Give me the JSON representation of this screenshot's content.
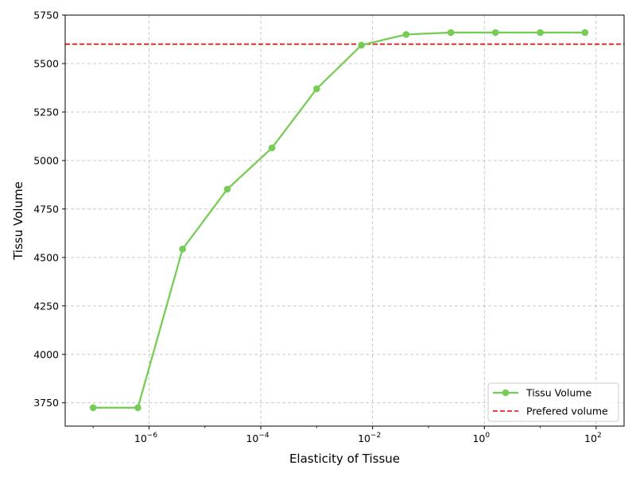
{
  "chart_data": {
    "type": "line",
    "xlabel": "Elasticity of Tissue",
    "ylabel": "Tissu Volume",
    "x_scale": "log",
    "xlim": [
      3.16e-08,
      316
    ],
    "ylim": [
      3630,
      5750
    ],
    "grid": true,
    "legend_position": "bottom-right",
    "y_ticks": [
      3750,
      4000,
      4250,
      4500,
      4750,
      5000,
      5250,
      5500,
      5750
    ],
    "x_ticks": [
      {
        "value": 1e-06,
        "base": "10",
        "exp": "−6"
      },
      {
        "value": 0.0001,
        "base": "10",
        "exp": "−4"
      },
      {
        "value": 0.01,
        "base": "10",
        "exp": "−2"
      },
      {
        "value": 1,
        "base": "10",
        "exp": "0"
      },
      {
        "value": 100,
        "base": "10",
        "exp": "2"
      }
    ],
    "series": [
      {
        "name": "Tissu Volume",
        "color": "#77cc55",
        "style": "solid",
        "marker": "circle",
        "x": [
          1e-07,
          6.31e-07,
          3.98e-06,
          2.51e-05,
          0.000158,
          0.001,
          0.00631,
          0.0398,
          0.251,
          1.58,
          10,
          63.1
        ],
        "y": [
          3725,
          3725,
          4543,
          4852,
          5065,
          5370,
          5595,
          5650,
          5660,
          5660,
          5660,
          5660
        ]
      }
    ],
    "hline": {
      "name": "Prefered volume",
      "y": 5600,
      "color": "#e60000",
      "style": "dashed"
    }
  }
}
